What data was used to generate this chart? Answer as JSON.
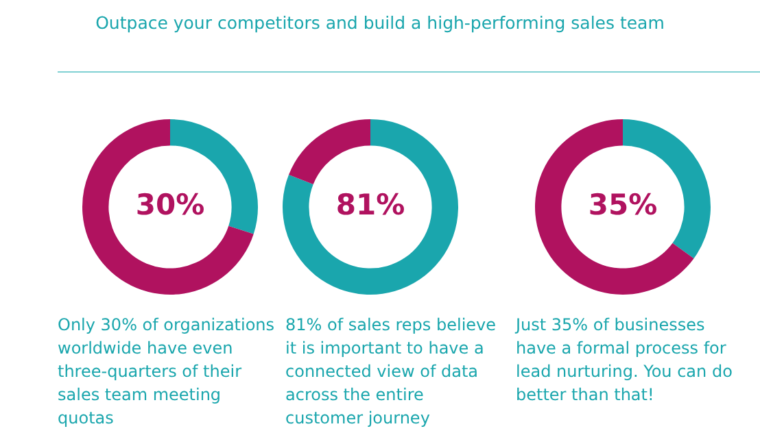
{
  "chart_data": [
    {
      "type": "donut",
      "title": "Outpace your competitors and build a high-performing sales team",
      "categories": [
        null,
        null
      ],
      "values": [
        30,
        70
      ],
      "colors": [
        "#1aa6ad",
        "#b0125f"
      ],
      "value_labels": [
        "30%",
        null
      ],
      "annotations": [
        "Only 30% of organizations worldwide have even three-quarters of their sales team meeting quotas"
      ]
    },
    {
      "type": "donut",
      "categories": [
        null,
        null
      ],
      "values": [
        81,
        19
      ],
      "colors": [
        "#1aa6ad",
        "#b0125f"
      ],
      "value_labels": [
        "81%",
        null
      ],
      "annotations": [
        "81% of sales reps believe it is important to have a connected view of data across the entire customer journey"
      ]
    },
    {
      "type": "donut",
      "categories": [
        null,
        null
      ],
      "values": [
        35,
        65
      ],
      "colors": [
        "#1aa6ad",
        "#b0125f"
      ],
      "value_labels": [
        "35%",
        null
      ],
      "annotations": [
        "Just 35% of businesses have a formal process for lead nurturing. You can do better than that!"
      ]
    }
  ]
}
